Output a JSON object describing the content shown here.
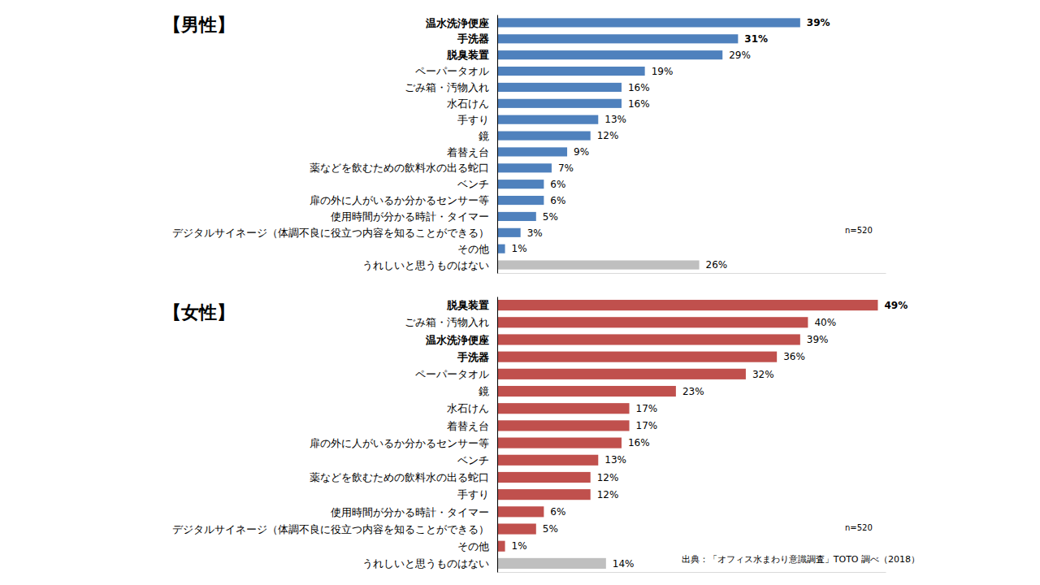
{
  "chart_data": [
    {
      "type": "bar",
      "title": "【男性】",
      "orientation": "horizontal",
      "data_labels": true,
      "tick_labels": "y",
      "xlim": [
        0,
        50
      ],
      "categories": [
        "温水洗浄便座",
        "手洗器",
        "脱臭装置",
        "ペーパータオル",
        "ごみ箱・汚物入れ",
        "水石けん",
        "手すり",
        "鏡",
        "着替え台",
        "薬などを飲むための飲料水の出る蛇口",
        "ベンチ",
        "扉の外に人がいるか分かるセンサー等",
        "使用時間が分かる時計・タイマー",
        "デジタルサイネージ（体調不良に役立つ内容を知ることができる）",
        "その他",
        "うれしいと思うものはない"
      ],
      "values": [
        39,
        31,
        29,
        19,
        16,
        16,
        13,
        12,
        9,
        7,
        6,
        6,
        5,
        3,
        1,
        26
      ],
      "value_labels": [
        "39%",
        "31%",
        "29%",
        "19%",
        "16%",
        "16%",
        "13%",
        "12%",
        "9%",
        "7%",
        "6%",
        "6%",
        "5%",
        "3%",
        "1%",
        "26%"
      ],
      "colors": [
        "#4f81bd",
        "#4f81bd",
        "#4f81bd",
        "#4f81bd",
        "#4f81bd",
        "#4f81bd",
        "#4f81bd",
        "#4f81bd",
        "#4f81bd",
        "#4f81bd",
        "#4f81bd",
        "#4f81bd",
        "#4f81bd",
        "#4f81bd",
        "#4f81bd",
        "#bfbfbf"
      ],
      "annotations": [
        "n=520"
      ]
    },
    {
      "type": "bar",
      "title": "【女性】",
      "orientation": "horizontal",
      "data_labels": true,
      "tick_labels": "y",
      "xlim": [
        0,
        50
      ],
      "categories": [
        "脱臭装置",
        "ごみ箱・汚物入れ",
        "温水洗浄便座",
        "手洗器",
        "ペーパータオル",
        "鏡",
        "水石けん",
        "着替え台",
        "扉の外に人がいるか分かるセンサー等",
        "ベンチ",
        "薬などを飲むための飲料水の出る蛇口",
        "手すり",
        "使用時間が分かる時計・タイマー",
        "デジタルサイネージ（体調不良に役立つ内容を知ることができる）",
        "その他",
        "うれしいと思うものはない"
      ],
      "values": [
        49,
        40,
        39,
        36,
        32,
        23,
        17,
        17,
        16,
        13,
        12,
        12,
        6,
        5,
        1,
        14
      ],
      "value_labels": [
        "49%",
        "40%",
        "39%",
        "36%",
        "32%",
        "23%",
        "17%",
        "17%",
        "16%",
        "13%",
        "12%",
        "12%",
        "6%",
        "5%",
        "1%",
        "14%"
      ],
      "colors": [
        "#c0504d",
        "#c0504d",
        "#c0504d",
        "#c0504d",
        "#c0504d",
        "#c0504d",
        "#c0504d",
        "#c0504d",
        "#c0504d",
        "#c0504d",
        "#c0504d",
        "#c0504d",
        "#c0504d",
        "#c0504d",
        "#c0504d",
        "#bfbfbf"
      ],
      "annotations": [
        "n=520",
        "出典：「オフィス水まわり意識調査」TOTO 調べ（2018）"
      ]
    }
  ]
}
